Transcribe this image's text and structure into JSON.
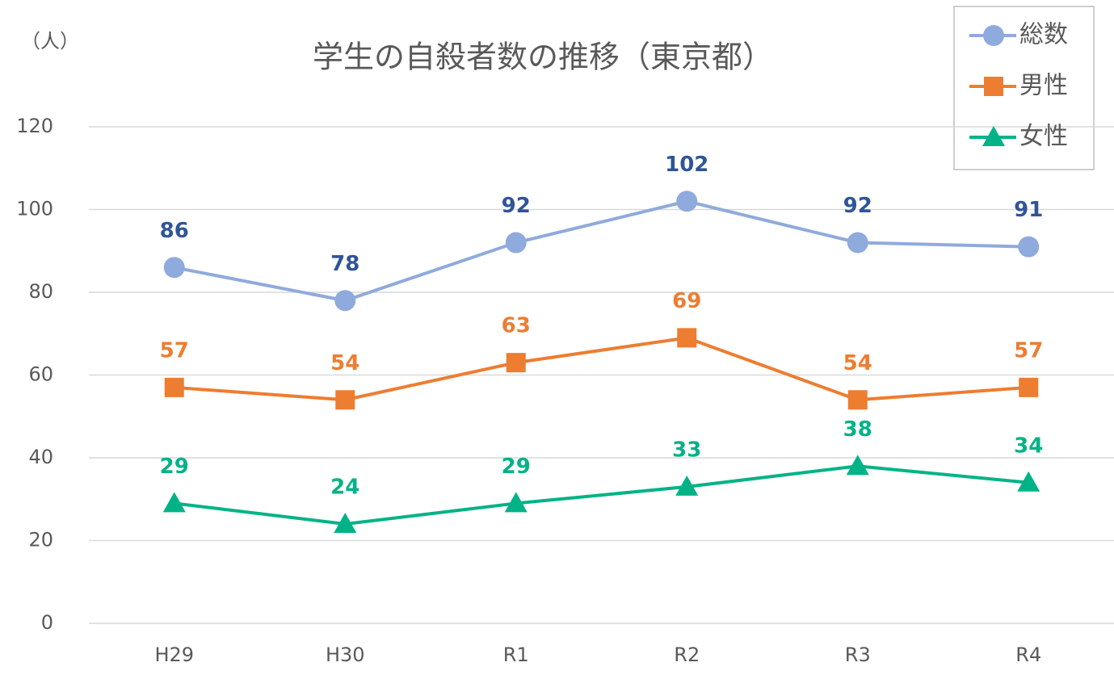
{
  "chart_data": {
    "type": "line",
    "title": "学生の自殺者数の推移（東京都）",
    "y_label": "（人）",
    "categories": [
      "H29",
      "H30",
      "R1",
      "R2",
      "R3",
      "R4"
    ],
    "series": [
      {
        "name": "総数",
        "color": "#8faadc",
        "label_color": "#2f5597",
        "marker": "circle",
        "values": [
          86,
          78,
          92,
          102,
          92,
          91
        ]
      },
      {
        "name": "男性",
        "color": "#ed7d31",
        "label_color": "#ed7d31",
        "marker": "square",
        "values": [
          57,
          54,
          63,
          69,
          54,
          57
        ]
      },
      {
        "name": "女性",
        "color": "#00b386",
        "label_color": "#00b386",
        "marker": "triangle",
        "values": [
          29,
          24,
          29,
          33,
          38,
          34
        ]
      }
    ],
    "ylim": [
      0,
      120
    ],
    "yticks": [
      0,
      20,
      40,
      60,
      80,
      100,
      120
    ],
    "grid": true,
    "legend": "top-right"
  }
}
